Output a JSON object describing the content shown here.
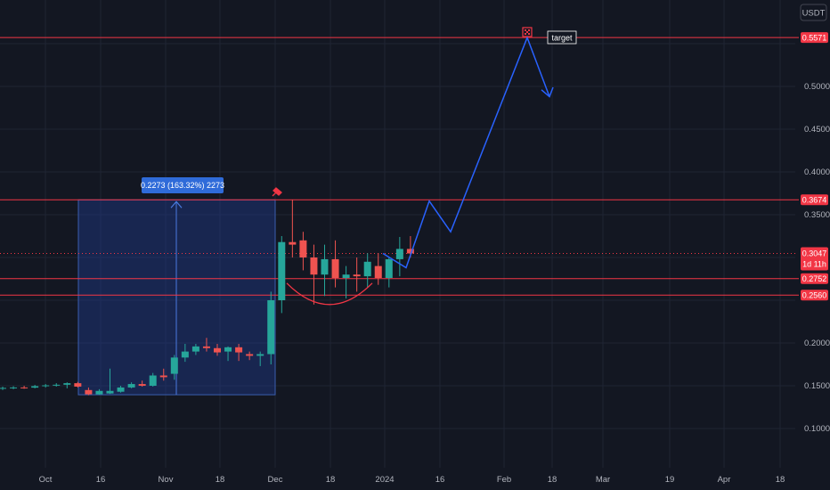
{
  "currency": "USDT",
  "chart_data": {
    "type": "candlestick",
    "y_ticks": [
      "0.5000",
      "0.4500",
      "0.4000",
      "0.3500",
      "0.2000",
      "0.1500",
      "0.1000"
    ],
    "x_ticks": [
      "Oct",
      "16",
      "Nov",
      "18",
      "Dec",
      "18",
      "2024",
      "16",
      "Feb",
      "18",
      "Mar",
      "19",
      "Apr",
      "18"
    ],
    "candles": [
      {
        "o": 0.147,
        "h": 0.149,
        "l": 0.145,
        "c": 0.1475
      },
      {
        "o": 0.1475,
        "h": 0.1495,
        "l": 0.146,
        "c": 0.148
      },
      {
        "o": 0.148,
        "h": 0.15,
        "l": 0.1465,
        "c": 0.1478
      },
      {
        "o": 0.1478,
        "h": 0.151,
        "l": 0.147,
        "c": 0.1495
      },
      {
        "o": 0.1495,
        "h": 0.152,
        "l": 0.148,
        "c": 0.1505
      },
      {
        "o": 0.1505,
        "h": 0.153,
        "l": 0.149,
        "c": 0.1512
      },
      {
        "o": 0.1512,
        "h": 0.154,
        "l": 0.147,
        "c": 0.153
      },
      {
        "o": 0.153,
        "h": 0.1545,
        "l": 0.148,
        "c": 0.149
      },
      {
        "o": 0.145,
        "h": 0.148,
        "l": 0.139,
        "c": 0.14
      },
      {
        "o": 0.14,
        "h": 0.146,
        "l": 0.1395,
        "c": 0.144
      },
      {
        "o": 0.141,
        "h": 0.17,
        "l": 0.1405,
        "c": 0.144
      },
      {
        "o": 0.143,
        "h": 0.15,
        "l": 0.142,
        "c": 0.148
      },
      {
        "o": 0.148,
        "h": 0.154,
        "l": 0.147,
        "c": 0.152
      },
      {
        "o": 0.152,
        "h": 0.156,
        "l": 0.149,
        "c": 0.15
      },
      {
        "o": 0.15,
        "h": 0.165,
        "l": 0.149,
        "c": 0.162
      },
      {
        "o": 0.162,
        "h": 0.17,
        "l": 0.156,
        "c": 0.16
      },
      {
        "o": 0.164,
        "h": 0.186,
        "l": 0.157,
        "c": 0.183
      },
      {
        "o": 0.183,
        "h": 0.199,
        "l": 0.178,
        "c": 0.19
      },
      {
        "o": 0.19,
        "h": 0.199,
        "l": 0.186,
        "c": 0.196
      },
      {
        "o": 0.196,
        "h": 0.206,
        "l": 0.19,
        "c": 0.194
      },
      {
        "o": 0.194,
        "h": 0.199,
        "l": 0.185,
        "c": 0.189
      },
      {
        "o": 0.19,
        "h": 0.196,
        "l": 0.179,
        "c": 0.195
      },
      {
        "o": 0.195,
        "h": 0.199,
        "l": 0.179,
        "c": 0.189
      },
      {
        "o": 0.187,
        "h": 0.19,
        "l": 0.18,
        "c": 0.185
      },
      {
        "o": 0.185,
        "h": 0.19,
        "l": 0.173,
        "c": 0.187
      },
      {
        "o": 0.187,
        "h": 0.26,
        "l": 0.175,
        "c": 0.25
      },
      {
        "o": 0.25,
        "h": 0.325,
        "l": 0.235,
        "c": 0.318
      },
      {
        "o": 0.318,
        "h": 0.3674,
        "l": 0.3,
        "c": 0.315
      },
      {
        "o": 0.32,
        "h": 0.33,
        "l": 0.285,
        "c": 0.3
      },
      {
        "o": 0.3,
        "h": 0.315,
        "l": 0.245,
        "c": 0.28
      },
      {
        "o": 0.28,
        "h": 0.315,
        "l": 0.255,
        "c": 0.298
      },
      {
        "o": 0.298,
        "h": 0.32,
        "l": 0.265,
        "c": 0.276
      },
      {
        "o": 0.276,
        "h": 0.29,
        "l": 0.252,
        "c": 0.28
      },
      {
        "o": 0.28,
        "h": 0.3,
        "l": 0.26,
        "c": 0.278
      },
      {
        "o": 0.278,
        "h": 0.305,
        "l": 0.265,
        "c": 0.295
      },
      {
        "o": 0.29,
        "h": 0.305,
        "l": 0.268,
        "c": 0.276
      },
      {
        "o": 0.276,
        "h": 0.3,
        "l": 0.265,
        "c": 0.298
      },
      {
        "o": 0.298,
        "h": 0.324,
        "l": 0.278,
        "c": 0.31
      },
      {
        "o": 0.31,
        "h": 0.325,
        "l": 0.3,
        "c": 0.3047
      }
    ],
    "levels": [
      {
        "price": 0.5571,
        "label": "0.5571"
      },
      {
        "price": 0.3674,
        "label": "0.3674"
      },
      {
        "price": 0.2752,
        "label": "0.2752"
      },
      {
        "price": 0.256,
        "label": "0.2560"
      }
    ],
    "current_price": {
      "price": 0.3047,
      "label": "0.3047",
      "countdown": "1d 11h"
    },
    "measure": {
      "label": "0.2273 (163.32%) 2273"
    },
    "target_label": "target",
    "colors": {
      "up": "#26a69a",
      "down": "#ef5350",
      "projection": "#2962ff",
      "level": "#f23645",
      "measure_fill": "#1e3a8a",
      "measure_box": "#2f6bd9"
    }
  }
}
